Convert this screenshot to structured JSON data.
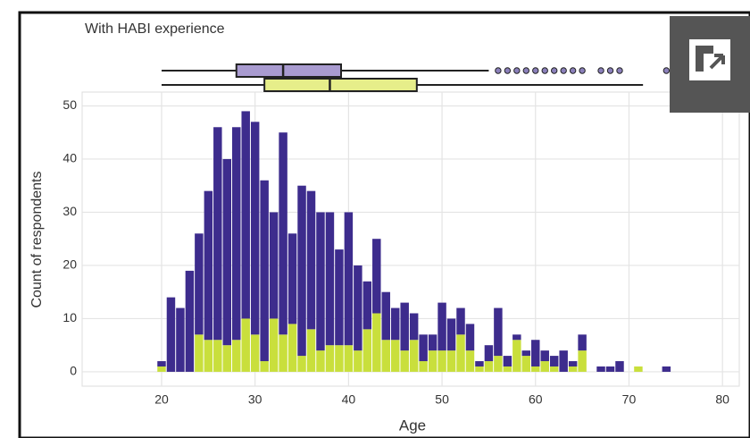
{
  "chart_data": {
    "type": "histogram",
    "title": "With HABI experience",
    "xlabel": "Age",
    "ylabel": "Count of respondents",
    "bins": [
      19.5,
      20.5,
      21.5,
      22.5,
      23.5,
      24.5,
      25.5,
      26.5,
      27.5,
      28.5,
      29.5,
      30.5,
      31.5,
      32.5,
      33.5,
      34.5,
      35.5,
      36.5,
      37.5,
      38.5,
      39.5,
      40.5,
      41.5,
      42.5,
      43.5,
      44.5,
      45.5,
      46.5,
      47.5,
      48.5,
      49.5,
      50.5,
      51.5,
      52.5,
      53.5,
      54.5,
      55.5,
      56.5,
      57.5,
      58.5,
      59.5,
      60.5,
      61.5,
      62.5,
      63.5,
      64.5,
      65.5,
      66.5,
      67.5,
      68.5,
      69.5,
      70.5,
      71.5,
      72.5,
      73.5,
      74.5
    ],
    "series": [
      {
        "color": "#c9df3c",
        "values": [
          1,
          0,
          0,
          0,
          7,
          6,
          6,
          5,
          6,
          10,
          7,
          2,
          10,
          7,
          9,
          3,
          8,
          4,
          5,
          5,
          5,
          4,
          8,
          11,
          6,
          6,
          4,
          6,
          2,
          4,
          4,
          4,
          7,
          4,
          1,
          2,
          3,
          1,
          6,
          3,
          1,
          2,
          1,
          0,
          1,
          4,
          0,
          0,
          0,
          0,
          0,
          1,
          0,
          0,
          0
        ]
      },
      {
        "color": "#3d2c8d",
        "values": [
          1,
          14,
          12,
          19,
          19,
          28,
          40,
          35,
          40,
          39,
          40,
          34,
          20,
          38,
          17,
          32,
          26,
          26,
          25,
          18,
          25,
          16,
          9,
          14,
          9,
          6,
          9,
          5,
          5,
          3,
          9,
          6,
          5,
          5,
          1,
          3,
          9,
          2,
          1,
          1,
          5,
          2,
          2,
          4,
          1,
          3,
          0,
          1,
          1,
          2,
          0,
          0,
          0,
          0,
          1
        ]
      }
    ],
    "boxplots": [
      {
        "color": "#a99bd0",
        "whislo": 20,
        "q1": 28,
        "med": 33,
        "q3": 39.2,
        "whishi": 55,
        "fliers": [
          56,
          57,
          58,
          59,
          60,
          61,
          62,
          63,
          64,
          65,
          67,
          68,
          69,
          74
        ]
      },
      {
        "color": "#e6ee8a",
        "whislo": 20,
        "q1": 31,
        "med": 38,
        "q3": 47.3,
        "whishi": 71.5,
        "fliers": []
      }
    ],
    "xlim": [
      11.5,
      81.8
    ],
    "ylim": [
      -2.7,
      52.6
    ],
    "xticks": [
      20,
      30,
      40,
      50,
      60,
      70,
      80
    ],
    "yticks": [
      0,
      10,
      20,
      30,
      40,
      50
    ],
    "grid": true
  }
}
